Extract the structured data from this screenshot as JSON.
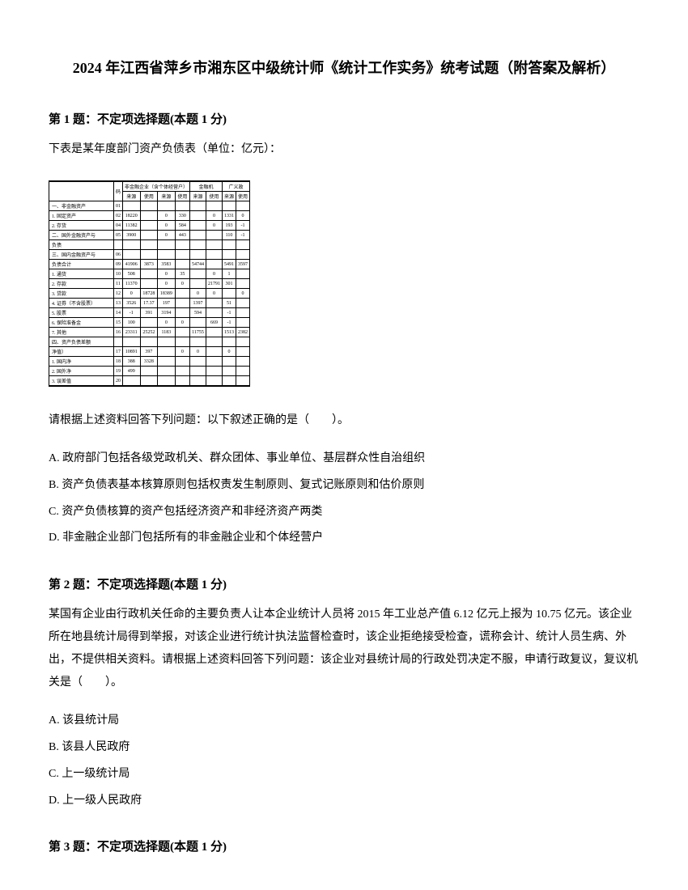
{
  "title": "2024 年江西省萍乡市湘东区中级统计师《统计工作实务》统考试题（附答案及解析）",
  "q1": {
    "header": "第 1 题：不定项选择题(本题 1 分)",
    "intro": "下表是某年度部门资产负债表（单位：亿元）：",
    "prompt": "请根据上述资料回答下列问题：以下叙述正确的是（　　）。",
    "optA": "A. 政府部门包括各级党政机关、群众团体、事业单位、基层群众性自治组织",
    "optB": "B. 资产负债表基本核算原则包括权责发生制原则、复式记账原则和估价原则",
    "optC": "C. 资产负债核算的资产包括经济资产和非经济资产两类",
    "optD": "D. 非金融企业部门包括所有的非金融企业和个体经营户"
  },
  "q2": {
    "header": "第 2 题：不定项选择题(本题 1 分)",
    "body": "某国有企业由行政机关任命的主要负责人让本企业统计人员将 2015 年工业总产值 6.12 亿元上报为 10.75 亿元。该企业所在地县统计局得到举报，对该企业进行统计执法监督检查时，该企业拒绝接受检查，谎称会计、统计人员生病、外出，不提供相关资料。请根据上述资料回答下列问题：该企业对县统计局的行政处罚决定不服，申请行政复议，复议机关是（　　）。",
    "optA": "A. 该县统计局",
    "optB": "B. 该县人民政府",
    "optC": "C. 上一级统计局",
    "optD": "D. 上一级人民政府"
  },
  "q3": {
    "header": "第 3 题：不定项选择题(本题 1 分)"
  },
  "table": {
    "header_group1": "非金融企业（含个体经营户）",
    "header_group2": "金融机",
    "header_group3": "广义政",
    "sub_headers": [
      "来源",
      "使用",
      "来源",
      "使用",
      "来源",
      "使用",
      "来源",
      "使用"
    ],
    "rows": [
      {
        "label": "一、非金融资产",
        "code": "01",
        "vals": [
          "",
          "",
          "",
          "",
          "",
          "",
          "",
          ""
        ]
      },
      {
        "label": "1. 固定资产",
        "code": "02",
        "vals": [
          "18220",
          "",
          "0",
          "330",
          "",
          "0",
          "1331",
          "0",
          "3891",
          "",
          "0"
        ]
      },
      {
        "label": "2. 存货",
        "code": "04",
        "vals": [
          "11382",
          "",
          "0",
          "584",
          "",
          "0",
          "193",
          "-1",
          "34",
          "",
          "0"
        ]
      },
      {
        "label": "二、国外金融资产与",
        "code": "05",
        "vals": [
          "3900",
          "",
          "0",
          "443",
          "",
          "",
          "110",
          "-1",
          "-1",
          "",
          "0"
        ]
      },
      {
        "label": "负债",
        "code": "",
        "vals": []
      },
      {
        "label": "三、国内金融资产与",
        "code": "06",
        "vals": []
      },
      {
        "label": "负债合计",
        "code": "09",
        "vals": [
          "41906",
          "3873",
          "3583",
          "",
          "54744",
          "",
          "5491",
          "3597",
          "17911",
          "",
          "0"
        ]
      },
      {
        "label": "1. 通货",
        "code": "10",
        "vals": [
          "508",
          "",
          "0",
          "35",
          "",
          "0",
          "1",
          "",
          "0",
          "713",
          "",
          "0"
        ]
      },
      {
        "label": "2. 存款",
        "code": "11",
        "vals": [
          "11370",
          "",
          "0",
          "0",
          "",
          "21791",
          "301",
          "",
          "-1",
          "5127",
          "",
          "0"
        ]
      },
      {
        "label": "3. 贷款",
        "code": "12",
        "vals": [
          "0",
          "18728",
          "18389",
          "",
          "0",
          "0",
          "",
          "0",
          "0",
          "",
          "2937"
        ]
      },
      {
        "label": "4. 证券（不含股票）",
        "code": "13",
        "vals": [
          "3526",
          "17.37",
          "197",
          "",
          "1397",
          "",
          "51",
          "",
          "0",
          "3193",
          "",
          "0"
        ]
      },
      {
        "label": "5. 股票",
        "code": "14",
        "vals": [
          "-1",
          "391",
          "3194",
          "",
          "594",
          "",
          "-1",
          "",
          "-1",
          "223",
          "",
          "0"
        ]
      },
      {
        "label": "6. 保险准备金",
        "code": "15",
        "vals": [
          "100",
          "",
          "0",
          "0",
          "",
          "669",
          "-1",
          "",
          "-1",
          "914",
          "",
          "0"
        ]
      },
      {
        "label": "7. 其他",
        "code": "16",
        "vals": [
          "23311",
          "25252",
          "1183",
          "",
          "11755",
          "",
          "1513",
          "2382",
          "217",
          "",
          "0"
        ]
      },
      {
        "label": "四、资产负债差额",
        "code": "",
        "vals": []
      },
      {
        "label": "净值）",
        "code": "17",
        "vals": [
          "10891",
          "397",
          "",
          "0",
          "0",
          "",
          "0",
          "",
          "",
          "",
          "",
          "0"
        ]
      },
      {
        "label": "1. 国内净",
        "code": "18",
        "vals": [
          "388",
          "3328",
          "",
          "",
          "",
          "",
          "",
          "",
          "",
          "",
          ""
        ]
      },
      {
        "label": "2. 国外净",
        "code": "19",
        "vals": [
          "499",
          "",
          "",
          "",
          "",
          "",
          "",
          "",
          "",
          "",
          ""
        ]
      },
      {
        "label": "3. 误差值",
        "code": "20",
        "vals": [
          "",
          "",
          "",
          "",
          "",
          "",
          "",
          "",
          "",
          "",
          ""
        ]
      }
    ]
  }
}
